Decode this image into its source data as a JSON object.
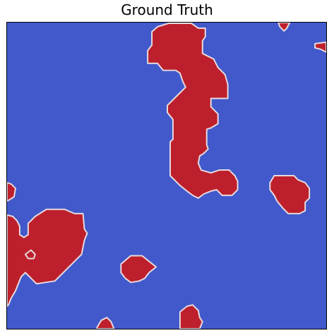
{
  "figure": {
    "title": "Ground Truth"
  },
  "colors": {
    "background": "#4259CC",
    "region": "#BE1F2C",
    "region_edge": "#E6DADB",
    "frame": "#000000"
  },
  "segmentation": {
    "classes": [
      "background",
      "region"
    ]
  }
}
